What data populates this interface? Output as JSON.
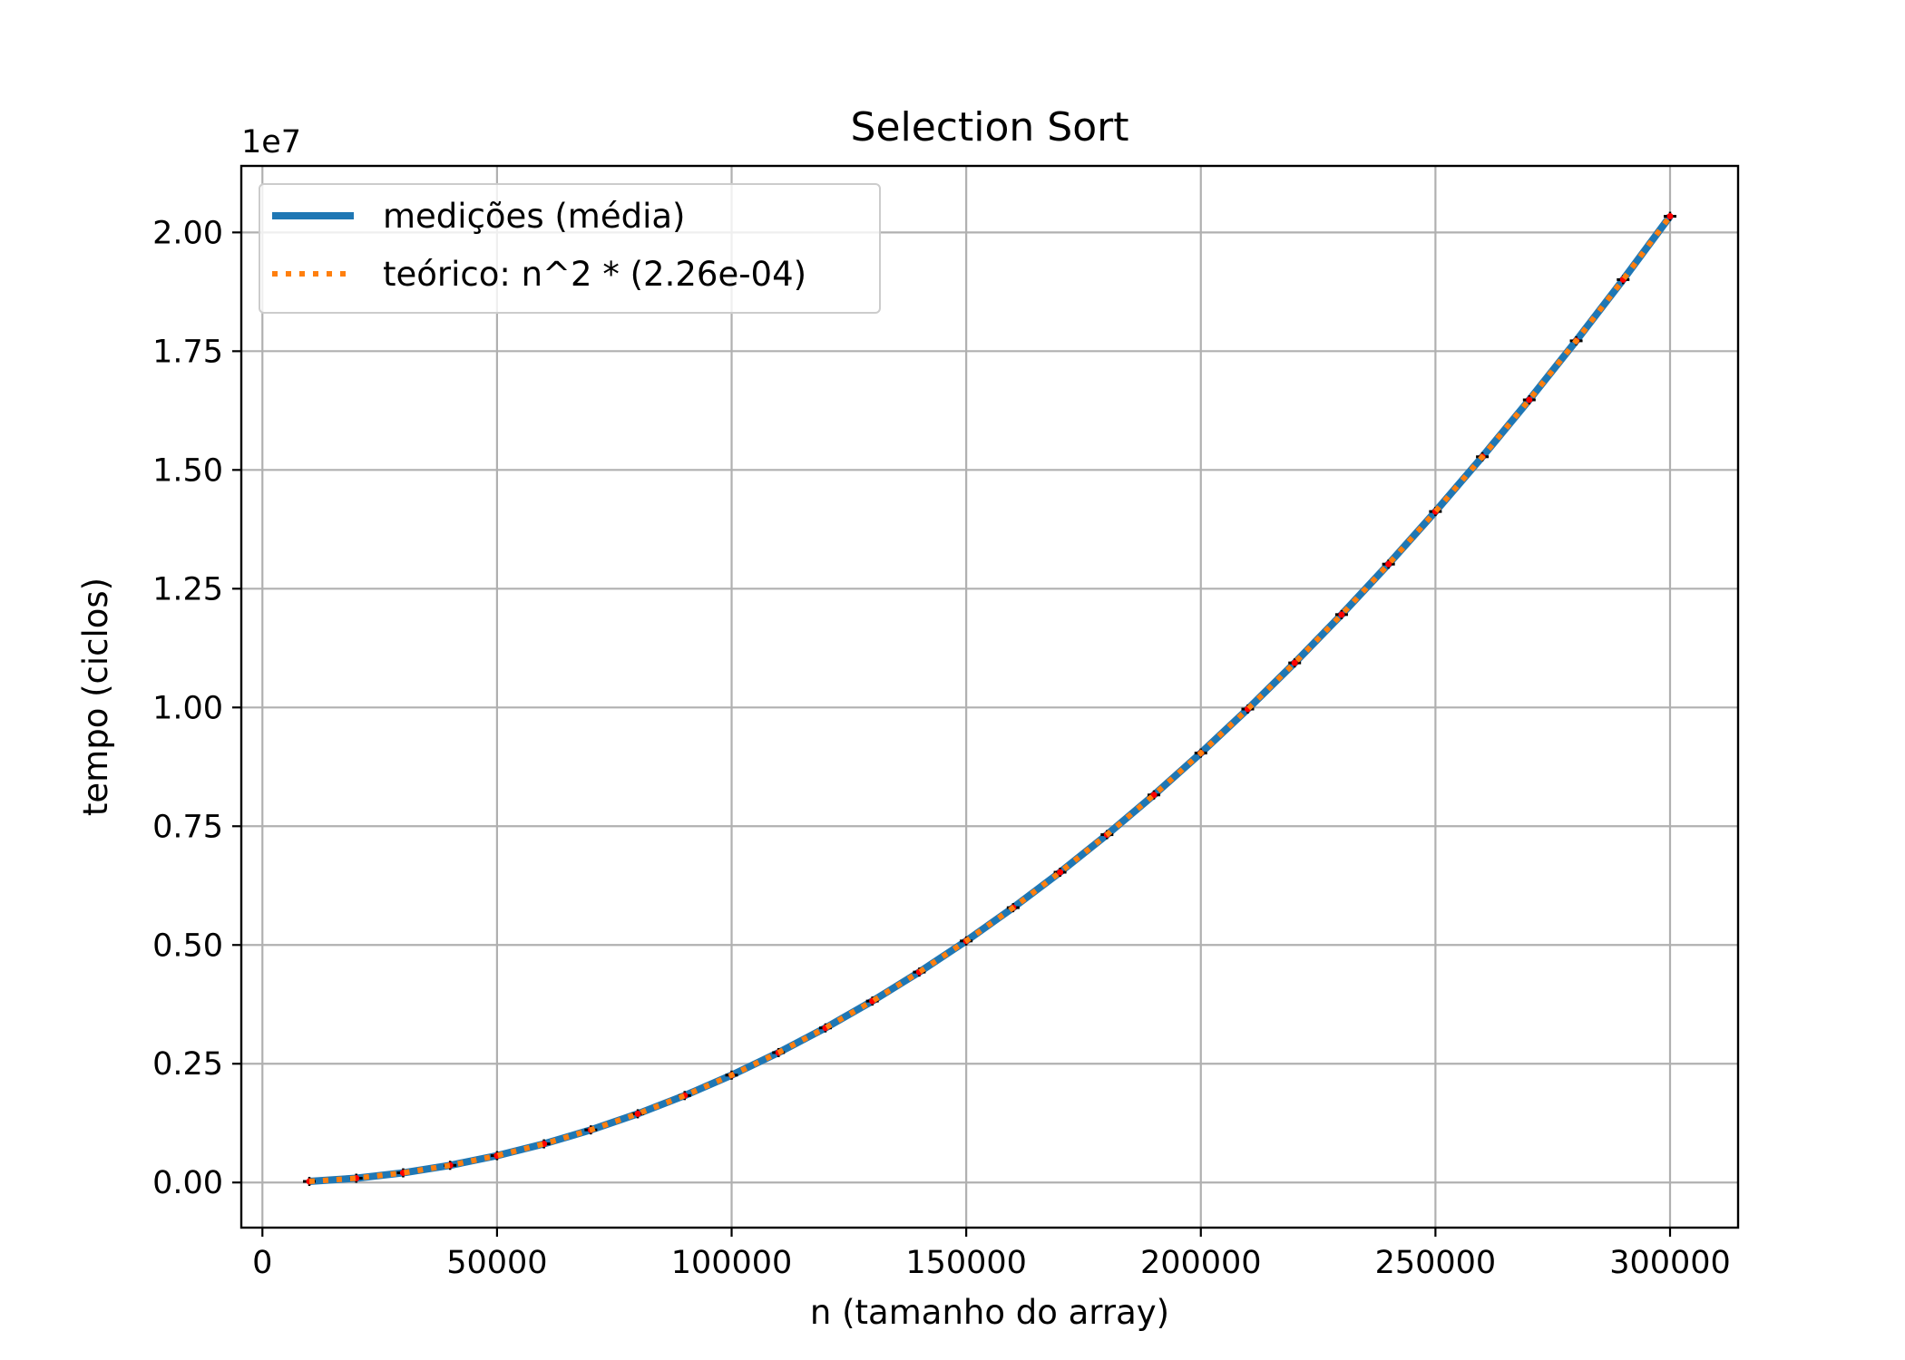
{
  "chart_data": {
    "type": "line",
    "title": "Selection Sort",
    "xlabel": "n (tamanho do array)",
    "ylabel": "tempo (ciclos)",
    "y_offset_label": "1e7",
    "y_scale": 10000000,
    "xlim": [
      -4500,
      314500
    ],
    "ylim": [
      -950000,
      21400000
    ],
    "x_ticks": [
      0,
      50000,
      100000,
      150000,
      200000,
      250000,
      300000
    ],
    "x_tick_labels": [
      "0",
      "50000",
      "100000",
      "150000",
      "200000",
      "250000",
      "300000"
    ],
    "y_ticks": [
      0,
      2500000,
      5000000,
      7500000,
      10000000,
      12500000,
      15000000,
      17500000,
      20000000
    ],
    "y_tick_labels": [
      "0.00",
      "0.25",
      "0.50",
      "0.75",
      "1.00",
      "1.25",
      "1.50",
      "1.75",
      "2.00"
    ],
    "grid": true,
    "legend_position": "upper-left",
    "x": [
      10000,
      20000,
      30000,
      40000,
      50000,
      60000,
      70000,
      80000,
      90000,
      100000,
      110000,
      120000,
      130000,
      140000,
      150000,
      160000,
      170000,
      180000,
      190000,
      200000,
      210000,
      220000,
      230000,
      240000,
      250000,
      260000,
      270000,
      280000,
      290000,
      300000
    ],
    "series": [
      {
        "name": "medições (média)",
        "style": "solid",
        "color": "#1f77b4",
        "values": [
          22600,
          90400,
          203400,
          361600,
          565000,
          813600,
          1107400,
          1446400,
          1830600,
          2260000,
          2734600,
          3254400,
          3819400,
          4429600,
          5085000,
          5785600,
          6531400,
          7322400,
          8158600,
          9040000,
          9966600,
          10938400,
          11955400,
          13017600,
          14125000,
          15277600,
          16475400,
          17718400,
          19006600,
          20340000
        ]
      },
      {
        "name": "teórico: n^2 * (2.26e-04)",
        "style": "dotted",
        "color": "#ff7f0e",
        "values": [
          22600,
          90400,
          203400,
          361600,
          565000,
          813600,
          1107400,
          1446400,
          1830600,
          2260000,
          2734600,
          3254400,
          3819400,
          4429600,
          5085000,
          5785600,
          6531400,
          7322400,
          8158600,
          9040000,
          9966600,
          10938400,
          11955400,
          13017600,
          14125000,
          15277600,
          16475400,
          17718400,
          19006600,
          20340000
        ]
      }
    ],
    "marker_colors": {
      "dot": "#ff0000",
      "errorbar": "#000000"
    },
    "colors": {
      "grid": "#b0b0b0",
      "axes": "#000000",
      "legend_border": "#cccccc"
    }
  }
}
